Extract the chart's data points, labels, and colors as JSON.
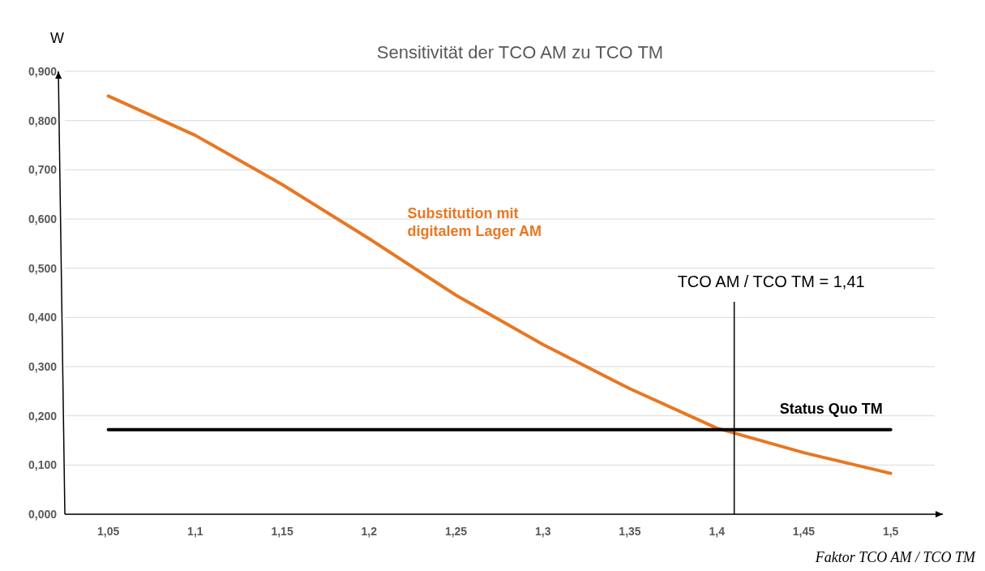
{
  "chart_data": {
    "type": "line",
    "title": "Sensitivität der TCO AM zu TCO TM",
    "xlabel": "Faktor TCO AM / TCO TM",
    "ylabel": "W",
    "xlim": [
      1.025,
      1.53
    ],
    "xticks": [
      {
        "value": 1.05,
        "label": "1,05"
      },
      {
        "value": 1.1,
        "label": "1,1"
      },
      {
        "value": 1.15,
        "label": "1,15"
      },
      {
        "value": 1.2,
        "label": "1,2"
      },
      {
        "value": 1.25,
        "label": "1,25"
      },
      {
        "value": 1.3,
        "label": "1,3"
      },
      {
        "value": 1.35,
        "label": "1,35"
      },
      {
        "value": 1.4,
        "label": "1,4"
      },
      {
        "value": 1.45,
        "label": "1,45"
      },
      {
        "value": 1.5,
        "label": "1,5"
      }
    ],
    "ylim": [
      0,
      0.9
    ],
    "yticks": [
      {
        "value": 0,
        "label": "0,000"
      },
      {
        "value": 0.1,
        "label": "0,100"
      },
      {
        "value": 0.2,
        "label": "0,200"
      },
      {
        "value": 0.3,
        "label": "0,300"
      },
      {
        "value": 0.4,
        "label": "0,400"
      },
      {
        "value": 0.5,
        "label": "0,500"
      },
      {
        "value": 0.6,
        "label": "0,600"
      },
      {
        "value": 0.7,
        "label": "0,700"
      },
      {
        "value": 0.8,
        "label": "0,800"
      },
      {
        "value": 0.9,
        "label": "0,900"
      }
    ],
    "grid": "y",
    "legend": false,
    "marker": "none",
    "series": [
      {
        "name": "Substitution mit digitalem Lager AM",
        "color": "#e87722",
        "x": [
          1.05,
          1.1,
          1.15,
          1.2,
          1.25,
          1.3,
          1.35,
          1.4,
          1.45,
          1.5
        ],
        "values": [
          0.85,
          0.77,
          0.67,
          0.56,
          0.445,
          0.345,
          0.255,
          0.175,
          0.125,
          0.083
        ]
      },
      {
        "name": "Status Quo TM",
        "color": "#000000",
        "x": [
          1.05,
          1.5
        ],
        "values": [
          0.172,
          0.172
        ]
      }
    ],
    "ref_lines": [
      {
        "axis": "x",
        "value": 1.41,
        "label": "TCO AM / TCO TM = 1,41",
        "color": "#000000"
      }
    ]
  }
}
